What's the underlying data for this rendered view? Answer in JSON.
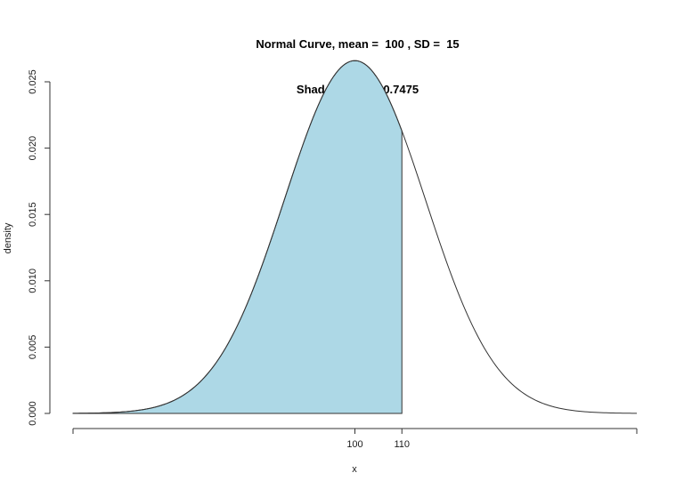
{
  "title": {
    "line1": "Normal Curve, mean =  100 , SD =  15",
    "line2": "Shaded Area =  0.7475"
  },
  "chart_data": {
    "type": "area",
    "subtype": "normal-density-curve",
    "title": "Normal Curve, mean =  100 , SD =  15",
    "subtitle": "Shaded Area =  0.7475",
    "mean": 100,
    "sd": 15,
    "peak_density": 0.0266,
    "shaded_area": 0.7475,
    "shade_from_x": 40,
    "shade_to_x": 110,
    "xlabel": "x",
    "ylabel": "density",
    "x_domain": [
      40,
      160
    ],
    "ylim": [
      0,
      0.0266
    ],
    "x_ticks_labeled": [
      100,
      110
    ],
    "x_ticks_unlabeled": [
      40,
      160
    ],
    "y_ticks": [
      0,
      0.005,
      0.01,
      0.015,
      0.02,
      0.025
    ],
    "grid": false,
    "legend": false,
    "colors": {
      "shade_fill": "#ADD8E6",
      "curve_stroke": "#333333",
      "axis_stroke": "#333333",
      "text": "#1a1a1a",
      "background": "#FFFFFF"
    }
  }
}
